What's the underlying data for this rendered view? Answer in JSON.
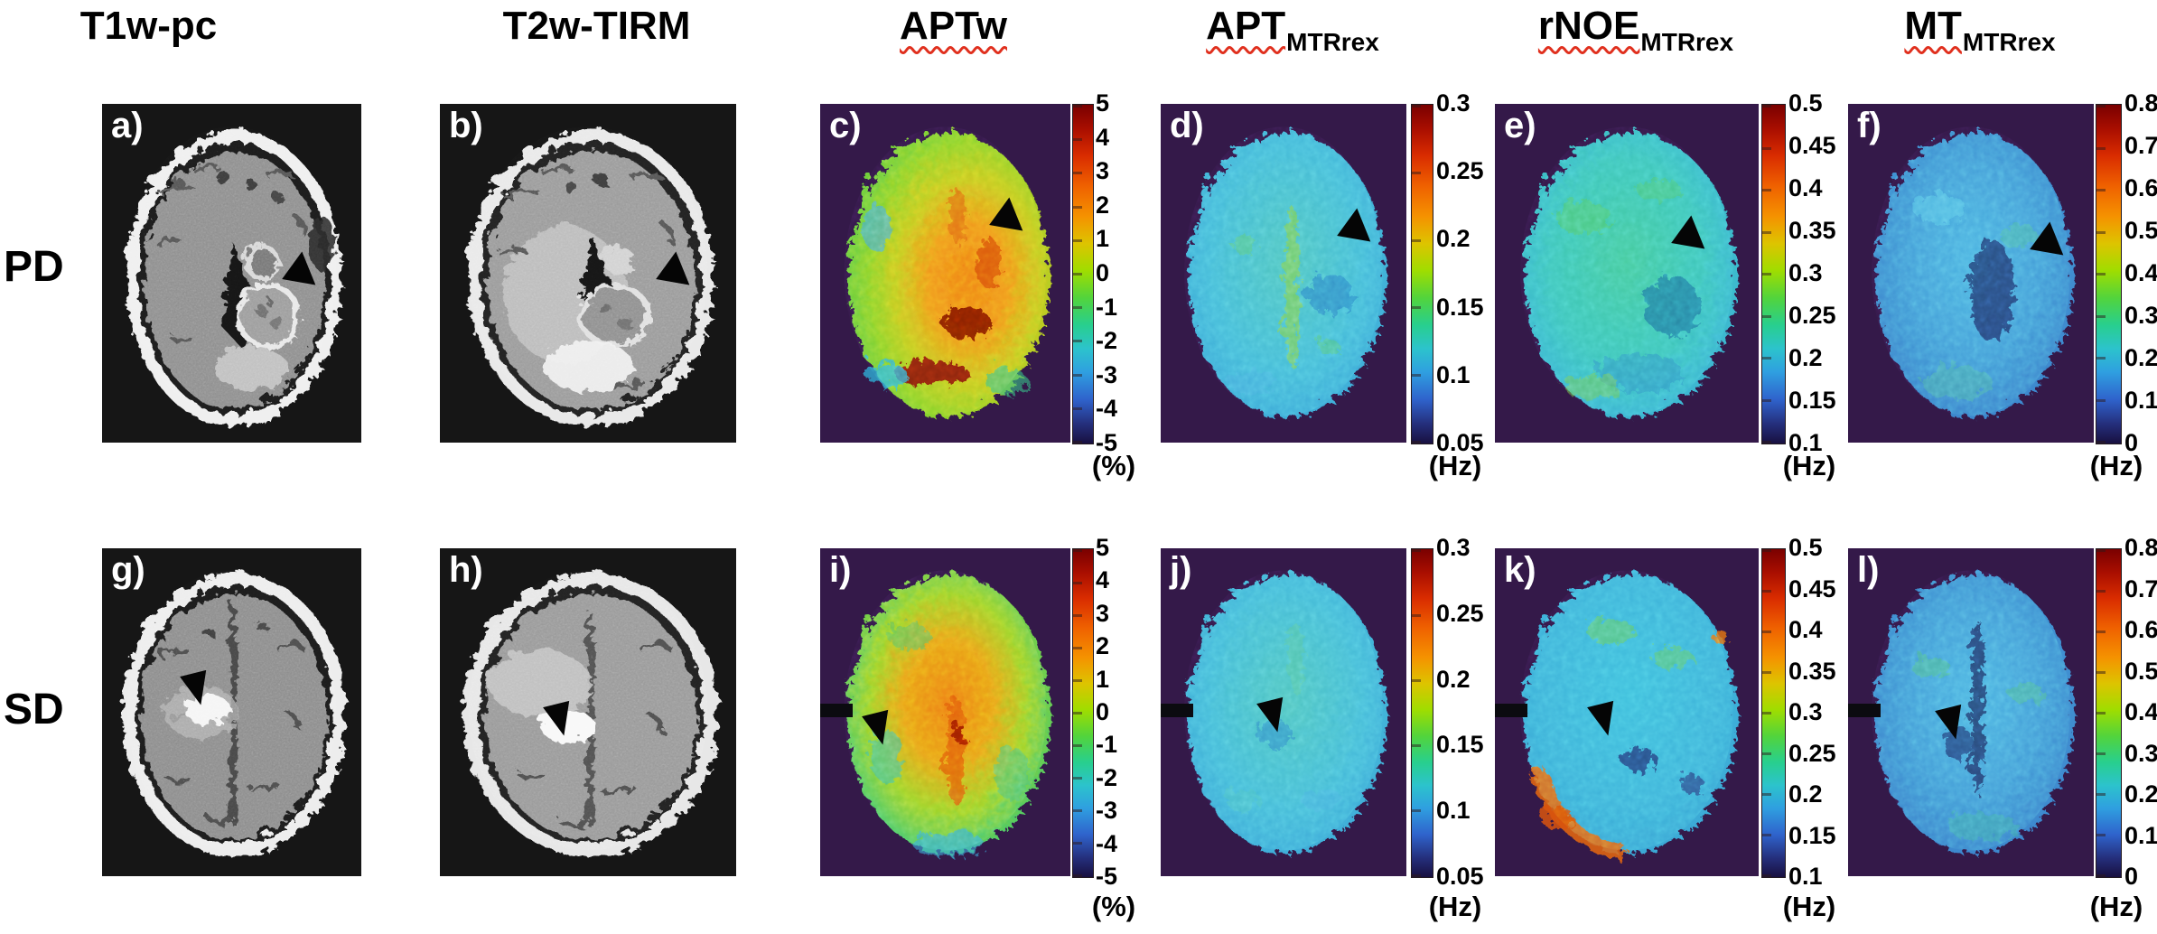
{
  "figure": {
    "type": "multiparametric MRI comparison figure",
    "rows": 2,
    "columns": 6
  },
  "headers": [
    {
      "base": "T1w-pc",
      "sub": "",
      "spellcheck_underline": false
    },
    {
      "base": "T2w-TIRM",
      "sub": "",
      "spellcheck_underline": false
    },
    {
      "base": "APTw",
      "sub": "",
      "spellcheck_underline": true
    },
    {
      "base": "APT",
      "sub": "MTRrex",
      "spellcheck_underline": true
    },
    {
      "base": "rNOE",
      "sub": "MTRrex",
      "spellcheck_underline": true
    },
    {
      "base": "MT",
      "sub": "MTRrex",
      "spellcheck_underline": true
    }
  ],
  "row_labels": {
    "pd": "PD",
    "sd": "SD"
  },
  "letters": {
    "a": "a)",
    "b": "b)",
    "c": "c)",
    "d": "d)",
    "e": "e)",
    "f": "f)",
    "g": "g)",
    "h": "h)",
    "i": "i)",
    "j": "j)",
    "k": "k)",
    "l": "l)"
  },
  "colorbars": {
    "aptw": {
      "unit": "(%)",
      "min": -5,
      "max": 5,
      "ticks": [
        "5",
        "4",
        "3",
        "2",
        "1",
        "0",
        "-1",
        "-2",
        "-3",
        "-4",
        "-5"
      ]
    },
    "apt": {
      "unit": "(Hz)",
      "min": 0.05,
      "max": 0.3,
      "ticks": [
        "0.3",
        "0.25",
        "0.2",
        "0.15",
        "0.1",
        "0.05"
      ]
    },
    "rnoe": {
      "unit": "(Hz)",
      "min": 0.1,
      "max": 0.5,
      "ticks": [
        "0.5",
        "0.45",
        "0.4",
        "0.35",
        "0.3",
        "0.25",
        "0.2",
        "0.15",
        "0.1"
      ]
    },
    "mt": {
      "unit": "(Hz)",
      "min": 0,
      "max": 0.8,
      "ticks": [
        "0.8",
        "0.7",
        "0.6",
        "0.5",
        "0.4",
        "0.3",
        "0.2",
        "0.1",
        "0"
      ]
    }
  },
  "colors": {
    "figure_background": "#ffffff",
    "gray_panel_background": "#161616",
    "map_panel_background": "#341949",
    "spellcheck_underline": "#e0301e",
    "arrow": "#050505",
    "panel_letter": "#ffffff"
  }
}
